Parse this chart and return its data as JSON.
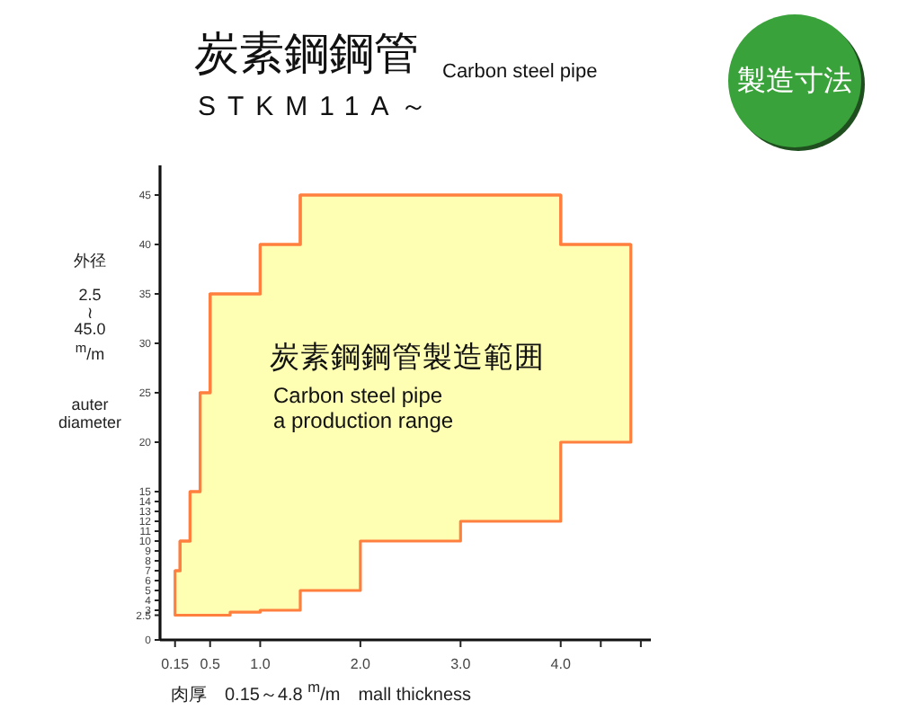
{
  "chart_data": {
    "type": "step",
    "title": "炭素鋼鋼管",
    "subtitle": "STKM11A～",
    "xlabel": "肉厚　0.15～4.8 $^{m}$/m　mall thickness",
    "ylabel": "外径\n\n2.5\n≀\n45.0\n$^{m}$/m\n\n\nauter\ndiameter",
    "annotations": [
      "Carbon steel pipe",
      "製造寸法",
      "Carbon steel pipe\na production range"
    ],
    "x": [
      0.15,
      0.2,
      0.3,
      0.4,
      0.5,
      0.7,
      1.0,
      1.4,
      2.0,
      3.0,
      4.0,
      4.7
    ],
    "series": [
      {
        "name": "炭素鋼鋼管製造範囲",
        "color": "#ff7f3f",
        "values": [
          7,
          10,
          15,
          25,
          35,
          35,
          40,
          45,
          45,
          45,
          40,
          40
        ],
        "lower": [
          2.5,
          2.5,
          2.5,
          2.5,
          2.5,
          2.8,
          3,
          5,
          10,
          12,
          20,
          20
        ],
        "upper": [
          7,
          10,
          15,
          25,
          35,
          35,
          40,
          45,
          45,
          45,
          40,
          40
        ]
      }
    ],
    "xlim": [
      0,
      4.9
    ],
    "ylim": [
      0,
      48
    ],
    "xticks": [
      0.15,
      0.5,
      {
        "value": 1,
        "label": "1.0"
      },
      {
        "value": 2,
        "label": "2.0"
      },
      {
        "value": 3,
        "label": "3.0"
      },
      {
        "value": 4,
        "label": "4.0"
      },
      {
        "value": 4.4,
        "label": null
      },
      {
        "value": 4.8,
        "label": null
      }
    ],
    "yticks": [
      0,
      2.5,
      3,
      4,
      5,
      6,
      7,
      8,
      9,
      10,
      11,
      12,
      13,
      14,
      15,
      20,
      25,
      30,
      35,
      40,
      45
    ]
  }
}
